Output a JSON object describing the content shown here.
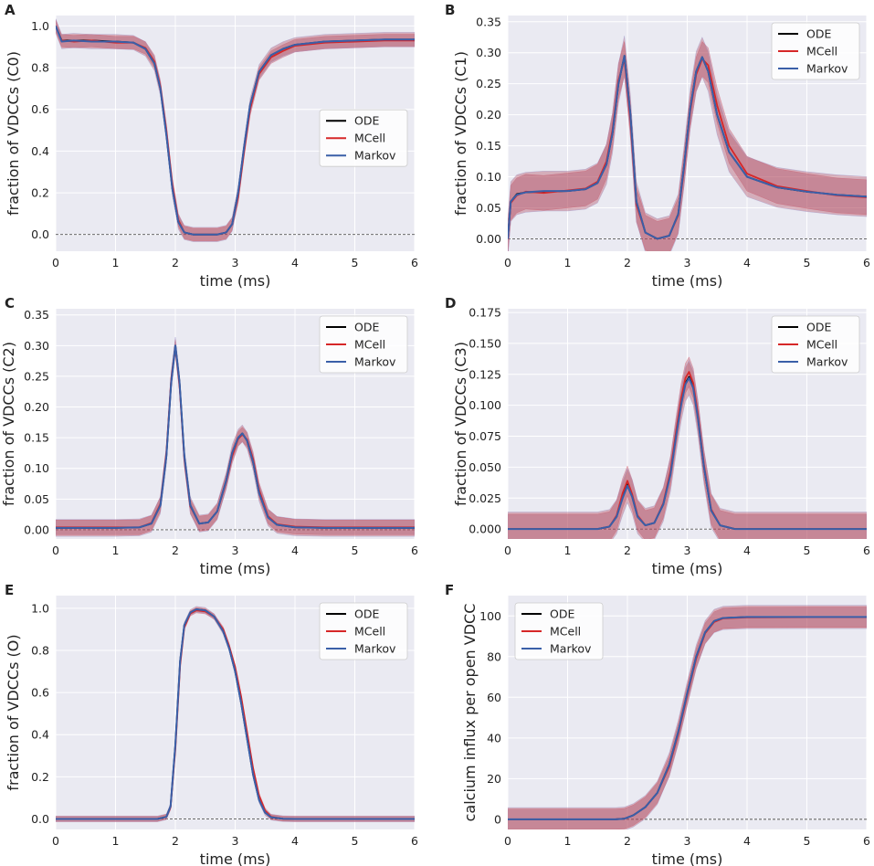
{
  "figure": {
    "series_names": [
      "ODE",
      "MCell",
      "Markov"
    ],
    "series_colors": [
      "#000000",
      "#d62728",
      "#3a5fa8"
    ],
    "band_color": "#b04a5e",
    "panel_bg": "#eaeaf2",
    "xlabel": "time (ms)",
    "xticks": [
      "0",
      "1",
      "2",
      "3",
      "4",
      "5",
      "6"
    ]
  },
  "chart_data": [
    {
      "panel": "A",
      "type": "line",
      "ylabel": "fraction of VDCCs (C0)",
      "xlim": [
        0,
        6
      ],
      "ylim": [
        -0.08,
        1.05
      ],
      "yticks": [
        0,
        0.2,
        0.4,
        0.6,
        0.8,
        1.0
      ],
      "ytick_labels": [
        "0.0",
        "0.2",
        "0.4",
        "0.6",
        "0.8",
        "1.0"
      ],
      "legend": "center-right",
      "band_halfwidth": 0.03,
      "x": [
        0,
        0.1,
        0.3,
        0.6,
        1.0,
        1.3,
        1.5,
        1.65,
        1.75,
        1.85,
        1.95,
        2.05,
        2.15,
        2.3,
        2.5,
        2.7,
        2.85,
        2.95,
        3.05,
        3.15,
        3.25,
        3.4,
        3.6,
        3.8,
        4.0,
        4.5,
        5.0,
        5.5,
        6.0
      ],
      "series": [
        {
          "name": "ODE",
          "values": [
            1.0,
            0.93,
            0.93,
            0.93,
            0.925,
            0.92,
            0.89,
            0.82,
            0.7,
            0.48,
            0.22,
            0.06,
            0.01,
            0.0,
            0.0,
            0.0,
            0.01,
            0.05,
            0.2,
            0.42,
            0.62,
            0.78,
            0.86,
            0.89,
            0.91,
            0.925,
            0.93,
            0.935,
            0.935
          ]
        },
        {
          "name": "MCell",
          "values": [
            1.0,
            0.93,
            0.925,
            0.93,
            0.92,
            0.92,
            0.895,
            0.83,
            0.71,
            0.5,
            0.24,
            0.07,
            0.01,
            0.0,
            0.0,
            0.0,
            0.01,
            0.05,
            0.18,
            0.4,
            0.6,
            0.77,
            0.85,
            0.88,
            0.905,
            0.92,
            0.925,
            0.93,
            0.93
          ]
        },
        {
          "name": "Markov",
          "values": [
            1.0,
            0.925,
            0.93,
            0.925,
            0.925,
            0.92,
            0.89,
            0.82,
            0.7,
            0.48,
            0.22,
            0.06,
            0.01,
            0.0,
            0.0,
            0.0,
            0.01,
            0.05,
            0.2,
            0.42,
            0.62,
            0.78,
            0.86,
            0.89,
            0.91,
            0.925,
            0.93,
            0.935,
            0.935
          ]
        }
      ]
    },
    {
      "panel": "B",
      "type": "line",
      "ylabel": "fraction of VDCCs (C1)",
      "xlim": [
        0,
        6
      ],
      "ylim": [
        -0.02,
        0.36
      ],
      "yticks": [
        0,
        0.05,
        0.1,
        0.15,
        0.2,
        0.25,
        0.3,
        0.35
      ],
      "ytick_labels": [
        "0.00",
        "0.05",
        "0.10",
        "0.15",
        "0.20",
        "0.25",
        "0.30",
        "0.35"
      ],
      "legend": "top-right",
      "band_halfwidth": 0.028,
      "x": [
        0,
        0.05,
        0.15,
        0.3,
        0.6,
        1.0,
        1.3,
        1.5,
        1.65,
        1.75,
        1.85,
        1.95,
        2.05,
        2.15,
        2.3,
        2.5,
        2.7,
        2.85,
        2.95,
        3.05,
        3.15,
        3.25,
        3.35,
        3.5,
        3.7,
        4.0,
        4.5,
        5.0,
        5.5,
        6.0
      ],
      "series": [
        {
          "name": "ODE",
          "values": [
            0.0,
            0.06,
            0.072,
            0.075,
            0.076,
            0.077,
            0.08,
            0.09,
            0.12,
            0.17,
            0.25,
            0.295,
            0.2,
            0.06,
            0.01,
            0.0,
            0.005,
            0.04,
            0.12,
            0.21,
            0.27,
            0.293,
            0.27,
            0.2,
            0.14,
            0.1,
            0.083,
            0.076,
            0.071,
            0.068
          ]
        },
        {
          "name": "MCell",
          "values": [
            0.0,
            0.058,
            0.07,
            0.076,
            0.074,
            0.078,
            0.081,
            0.092,
            0.125,
            0.175,
            0.255,
            0.29,
            0.19,
            0.055,
            0.01,
            0.0,
            0.005,
            0.038,
            0.115,
            0.205,
            0.265,
            0.29,
            0.28,
            0.215,
            0.15,
            0.105,
            0.085,
            0.077,
            0.07,
            0.067
          ]
        },
        {
          "name": "Markov",
          "values": [
            0.0,
            0.06,
            0.071,
            0.075,
            0.077,
            0.077,
            0.08,
            0.09,
            0.12,
            0.17,
            0.25,
            0.295,
            0.2,
            0.06,
            0.01,
            0.0,
            0.005,
            0.04,
            0.12,
            0.21,
            0.27,
            0.293,
            0.27,
            0.2,
            0.14,
            0.1,
            0.083,
            0.076,
            0.071,
            0.068
          ]
        }
      ]
    },
    {
      "panel": "C",
      "type": "line",
      "ylabel": "fraction of VDCCs (C2)",
      "xlim": [
        0,
        6
      ],
      "ylim": [
        -0.015,
        0.36
      ],
      "yticks": [
        0,
        0.05,
        0.1,
        0.15,
        0.2,
        0.25,
        0.3,
        0.35
      ],
      "ytick_labels": [
        "0.00",
        "0.05",
        "0.10",
        "0.15",
        "0.20",
        "0.25",
        "0.30",
        "0.35"
      ],
      "legend": "top-right",
      "band_halfwidth": 0.012,
      "x": [
        0,
        0.5,
        1.0,
        1.4,
        1.6,
        1.75,
        1.85,
        1.93,
        2.0,
        2.07,
        2.15,
        2.25,
        2.4,
        2.55,
        2.7,
        2.85,
        2.95,
        3.05,
        3.12,
        3.2,
        3.3,
        3.4,
        3.55,
        3.7,
        4.0,
        4.5,
        5.0,
        6.0
      ],
      "series": [
        {
          "name": "ODE",
          "values": [
            0.003,
            0.003,
            0.003,
            0.004,
            0.01,
            0.04,
            0.12,
            0.24,
            0.3,
            0.24,
            0.12,
            0.04,
            0.01,
            0.012,
            0.03,
            0.08,
            0.125,
            0.15,
            0.157,
            0.145,
            0.11,
            0.06,
            0.02,
            0.008,
            0.004,
            0.003,
            0.003,
            0.003
          ]
        },
        {
          "name": "MCell",
          "values": [
            0.004,
            0.004,
            0.004,
            0.004,
            0.011,
            0.042,
            0.125,
            0.245,
            0.298,
            0.235,
            0.115,
            0.038,
            0.01,
            0.012,
            0.03,
            0.078,
            0.12,
            0.148,
            0.155,
            0.147,
            0.115,
            0.065,
            0.022,
            0.009,
            0.005,
            0.004,
            0.004,
            0.004
          ]
        },
        {
          "name": "Markov",
          "values": [
            0.003,
            0.003,
            0.003,
            0.004,
            0.01,
            0.04,
            0.12,
            0.24,
            0.3,
            0.24,
            0.12,
            0.04,
            0.01,
            0.012,
            0.03,
            0.08,
            0.125,
            0.15,
            0.157,
            0.145,
            0.11,
            0.06,
            0.02,
            0.008,
            0.004,
            0.003,
            0.003,
            0.003
          ]
        }
      ]
    },
    {
      "panel": "D",
      "type": "line",
      "ylabel": "fraction of VDCCs (C3)",
      "xlim": [
        0,
        6
      ],
      "ylim": [
        -0.008,
        0.178
      ],
      "yticks": [
        0,
        0.025,
        0.05,
        0.075,
        0.1,
        0.125,
        0.15,
        0.175
      ],
      "ytick_labels": [
        "0.000",
        "0.025",
        "0.050",
        "0.075",
        "0.100",
        "0.125",
        "0.150",
        "0.175"
      ],
      "legend": "top-right",
      "band_halfwidth": 0.012,
      "x": [
        0,
        0.5,
        1.0,
        1.5,
        1.7,
        1.82,
        1.92,
        2.0,
        2.08,
        2.17,
        2.3,
        2.45,
        2.6,
        2.72,
        2.82,
        2.9,
        2.97,
        3.03,
        3.1,
        3.18,
        3.28,
        3.4,
        3.55,
        3.8,
        4.5,
        5.0,
        6.0
      ],
      "series": [
        {
          "name": "ODE",
          "values": [
            0.0,
            0.0,
            0.0,
            0.0,
            0.002,
            0.01,
            0.026,
            0.036,
            0.026,
            0.01,
            0.003,
            0.005,
            0.02,
            0.045,
            0.078,
            0.102,
            0.118,
            0.123,
            0.115,
            0.09,
            0.05,
            0.015,
            0.003,
            0.0,
            0.0,
            0.0,
            0.0
          ]
        },
        {
          "name": "MCell",
          "values": [
            0.0,
            0.0,
            0.0,
            0.0,
            0.002,
            0.011,
            0.029,
            0.039,
            0.028,
            0.011,
            0.003,
            0.005,
            0.021,
            0.047,
            0.081,
            0.106,
            0.122,
            0.127,
            0.118,
            0.092,
            0.052,
            0.016,
            0.003,
            0.0,
            0.0,
            0.0,
            0.0
          ]
        },
        {
          "name": "Markov",
          "values": [
            0.0,
            0.0,
            0.0,
            0.0,
            0.002,
            0.01,
            0.025,
            0.035,
            0.026,
            0.01,
            0.003,
            0.005,
            0.02,
            0.044,
            0.077,
            0.101,
            0.117,
            0.122,
            0.114,
            0.089,
            0.05,
            0.015,
            0.003,
            0.0,
            0.0,
            0.0,
            0.0
          ]
        }
      ]
    },
    {
      "panel": "E",
      "type": "line",
      "ylabel": "fraction of VDCCs (O)",
      "xlim": [
        0,
        6
      ],
      "ylim": [
        -0.05,
        1.06
      ],
      "yticks": [
        0,
        0.2,
        0.4,
        0.6,
        0.8,
        1.0
      ],
      "ytick_labels": [
        "0.0",
        "0.2",
        "0.4",
        "0.6",
        "0.8",
        "1.0"
      ],
      "legend": "top-right",
      "band_halfwidth": 0.012,
      "x": [
        0,
        1.0,
        1.7,
        1.85,
        1.92,
        2.0,
        2.08,
        2.15,
        2.25,
        2.35,
        2.5,
        2.65,
        2.8,
        2.9,
        3.0,
        3.1,
        3.2,
        3.3,
        3.4,
        3.5,
        3.6,
        3.8,
        4.0,
        5.0,
        6.0
      ],
      "series": [
        {
          "name": "ODE",
          "values": [
            0.0,
            0.0,
            0.0,
            0.01,
            0.06,
            0.35,
            0.75,
            0.92,
            0.98,
            0.995,
            0.99,
            0.96,
            0.89,
            0.81,
            0.7,
            0.55,
            0.38,
            0.21,
            0.09,
            0.03,
            0.008,
            0.001,
            0.0,
            0.0,
            0.0
          ]
        },
        {
          "name": "MCell",
          "values": [
            0.0,
            0.0,
            0.0,
            0.01,
            0.055,
            0.33,
            0.73,
            0.91,
            0.975,
            0.99,
            0.985,
            0.96,
            0.9,
            0.82,
            0.72,
            0.58,
            0.41,
            0.24,
            0.11,
            0.04,
            0.01,
            0.001,
            0.0,
            0.0,
            0.0
          ]
        },
        {
          "name": "Markov",
          "values": [
            0.0,
            0.0,
            0.0,
            0.01,
            0.06,
            0.35,
            0.75,
            0.92,
            0.98,
            0.995,
            0.99,
            0.96,
            0.89,
            0.81,
            0.7,
            0.55,
            0.38,
            0.21,
            0.09,
            0.03,
            0.008,
            0.001,
            0.0,
            0.0,
            0.0
          ]
        }
      ]
    },
    {
      "panel": "F",
      "type": "line",
      "ylabel": "calcium influx per open VDCC",
      "xlim": [
        0,
        6
      ],
      "ylim": [
        -5,
        110
      ],
      "yticks": [
        0,
        20,
        40,
        60,
        80,
        100
      ],
      "ytick_labels": [
        "0",
        "20",
        "40",
        "60",
        "80",
        "100"
      ],
      "legend": "top-left",
      "band_halfwidth": 5,
      "x": [
        0,
        1.0,
        1.8,
        1.95,
        2.1,
        2.3,
        2.5,
        2.7,
        2.85,
        3.0,
        3.15,
        3.3,
        3.45,
        3.6,
        4.0,
        5.0,
        6.0
      ],
      "series": [
        {
          "name": "ODE",
          "values": [
            0,
            0,
            0,
            0.3,
            2,
            6,
            13,
            27,
            43,
            62,
            80,
            92,
            97.5,
            99,
            99.5,
            99.5,
            99.5
          ]
        },
        {
          "name": "MCell",
          "values": [
            0,
            0,
            0,
            0.3,
            2,
            6,
            13,
            26,
            42,
            61,
            79,
            91.5,
            97,
            98.8,
            99.3,
            99.4,
            99.4
          ]
        },
        {
          "name": "Markov",
          "values": [
            0,
            0,
            0,
            0.3,
            2,
            6,
            13,
            27,
            43,
            62,
            80,
            92,
            97.5,
            99,
            99.5,
            99.5,
            99.5
          ]
        }
      ]
    }
  ]
}
